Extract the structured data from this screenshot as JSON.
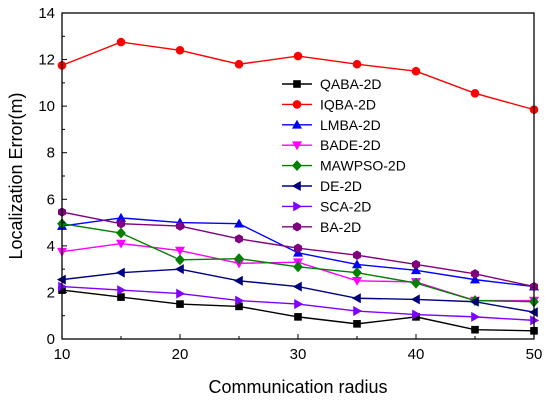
{
  "chart_data": {
    "type": "line",
    "xlabel": "Communication radius",
    "ylabel": "Localization Error(m)",
    "xlim": [
      10,
      50
    ],
    "ylim": [
      0,
      14
    ],
    "xticks": [
      "10",
      "20",
      "30",
      "40",
      "50"
    ],
    "yticks": [
      "0",
      "2",
      "4",
      "6",
      "8",
      "10",
      "12",
      "14"
    ],
    "grid": false,
    "legend_position": "center-right",
    "x": [
      10,
      15,
      20,
      25,
      30,
      35,
      40,
      45,
      50
    ],
    "series": [
      {
        "name": "QABA-2D",
        "color": "#000000",
        "marker": "square",
        "values": [
          2.1,
          1.8,
          1.5,
          1.4,
          0.95,
          0.65,
          0.95,
          0.4,
          0.35
        ]
      },
      {
        "name": "IQBA-2D",
        "color": "#ff0000",
        "marker": "circle",
        "values": [
          11.75,
          12.75,
          12.4,
          11.8,
          12.15,
          11.8,
          11.5,
          10.55,
          9.85
        ]
      },
      {
        "name": "LMBA-2D",
        "color": "#0000ff",
        "marker": "triangle-up",
        "values": [
          4.85,
          5.2,
          5.0,
          4.95,
          3.7,
          3.2,
          2.95,
          2.55,
          2.25
        ]
      },
      {
        "name": "BADE-2D",
        "color": "#ff00ff",
        "marker": "triangle-down",
        "values": [
          3.75,
          4.1,
          3.8,
          3.25,
          3.3,
          2.5,
          2.45,
          1.65,
          1.65
        ]
      },
      {
        "name": "MAWPSO-2D",
        "color": "#008000",
        "marker": "diamond",
        "values": [
          4.95,
          4.55,
          3.4,
          3.45,
          3.1,
          2.85,
          2.4,
          1.65,
          1.6
        ]
      },
      {
        "name": "DE-2D",
        "color": "#000080",
        "marker": "triangle-left",
        "values": [
          2.55,
          2.85,
          3.0,
          2.5,
          2.25,
          1.75,
          1.7,
          1.6,
          1.15
        ]
      },
      {
        "name": "SCA-2D",
        "color": "#8000ff",
        "marker": "triangle-right",
        "values": [
          2.25,
          2.1,
          1.95,
          1.65,
          1.5,
          1.2,
          1.05,
          0.95,
          0.8
        ]
      },
      {
        "name": "BA-2D",
        "color": "#800080",
        "marker": "hexagon",
        "values": [
          5.45,
          4.95,
          4.85,
          4.3,
          3.9,
          3.6,
          3.2,
          2.8,
          2.25
        ]
      }
    ]
  }
}
